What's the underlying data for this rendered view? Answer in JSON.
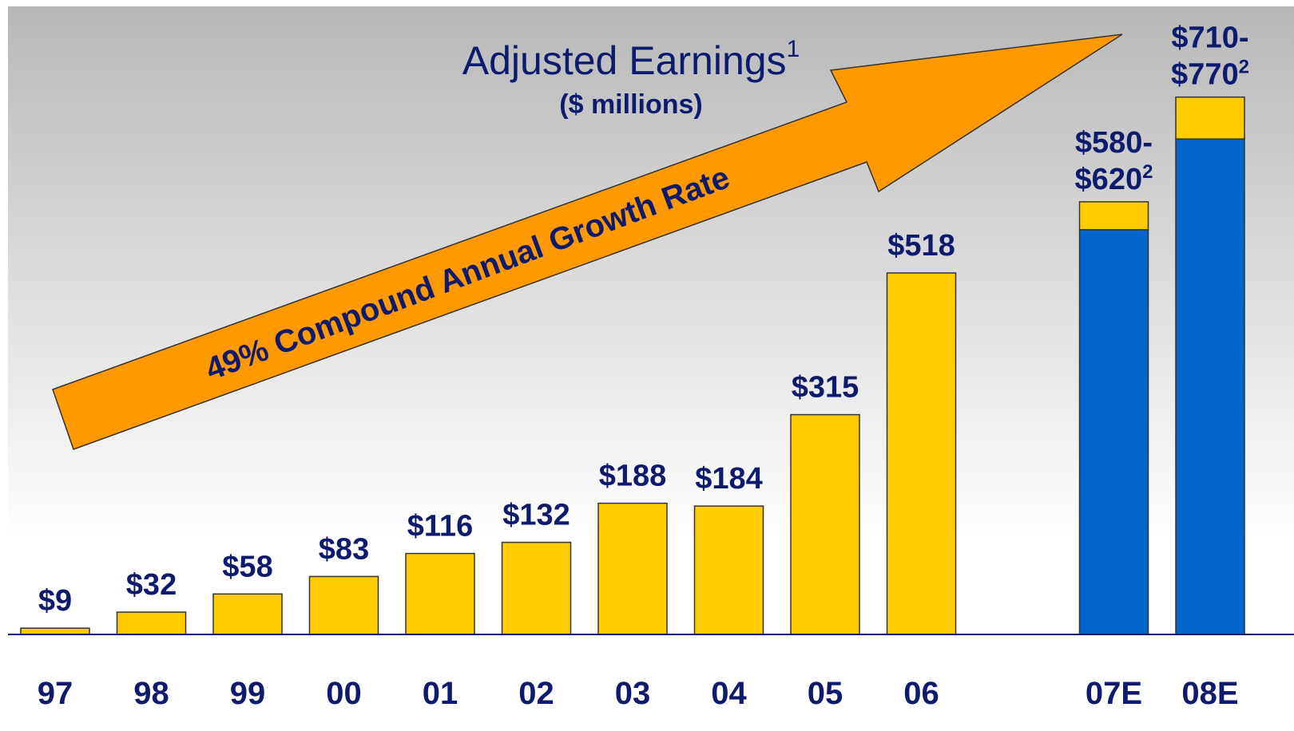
{
  "chart_data": {
    "type": "bar",
    "stacked": true,
    "title": "Adjusted Earnings",
    "title_note": "1",
    "subtitle": "($ millions)",
    "annotation": "49% Compound Annual Growth Rate",
    "categories": [
      "97",
      "98",
      "99",
      "00",
      "01",
      "02",
      "03",
      "04",
      "05",
      "06",
      null,
      "07E",
      "08E"
    ],
    "series": [
      {
        "color": "#ffcc00",
        "values": [
          9,
          32,
          58,
          83,
          116,
          132,
          188,
          184,
          315,
          518,
          null,
          null,
          null
        ],
        "value_labels": [
          "$9",
          "$32",
          "$58",
          "$83",
          "$116",
          "$132",
          "$188",
          "$184",
          "$315",
          "$518",
          null,
          null,
          null
        ]
      },
      {
        "color": "#0066cc",
        "values": [
          null,
          null,
          null,
          null,
          null,
          null,
          null,
          null,
          null,
          null,
          null,
          580,
          710
        ]
      },
      {
        "color": "#ffcc00",
        "values": [
          null,
          null,
          null,
          null,
          null,
          null,
          null,
          null,
          null,
          null,
          null,
          40,
          60
        ]
      }
    ],
    "range_labels": [
      null,
      null,
      null,
      null,
      null,
      null,
      null,
      null,
      null,
      null,
      null,
      [
        "$580-",
        "$620"
      ],
      [
        "$710-",
        "$770"
      ]
    ],
    "range_note": "2",
    "ylim": [
      0,
      900
    ]
  }
}
